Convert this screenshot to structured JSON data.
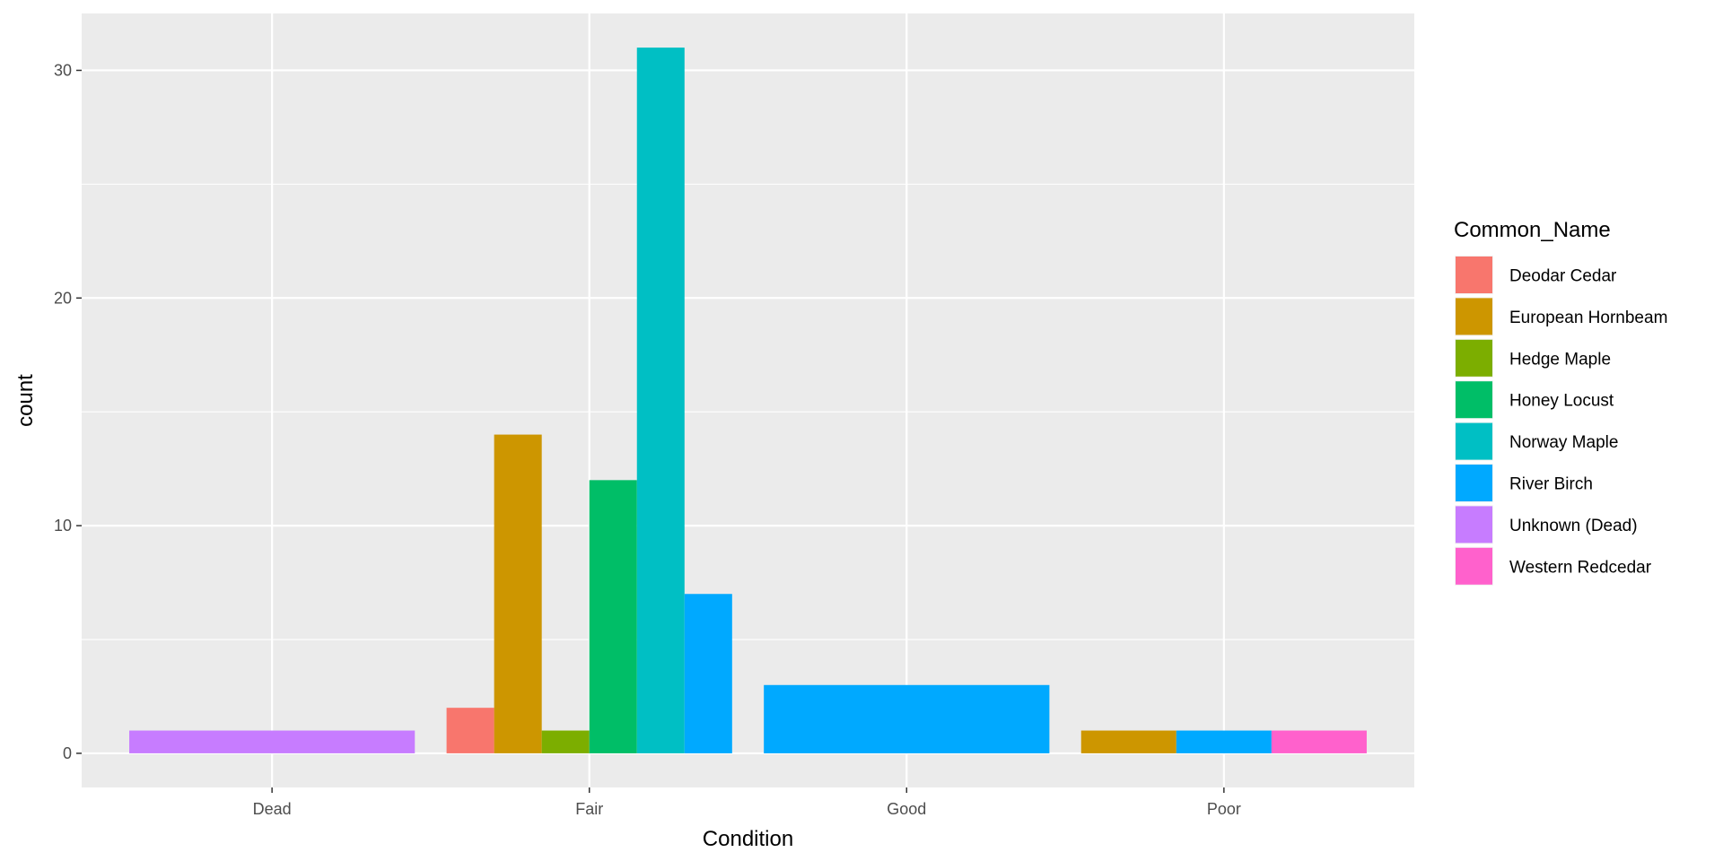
{
  "chart_data": {
    "type": "bar",
    "position": "dodge",
    "xlabel": "Condition",
    "ylabel": "count",
    "categories": [
      "Dead",
      "Fair",
      "Good",
      "Poor"
    ],
    "ylim": [
      -1.5,
      32.5
    ],
    "yticks": [
      0,
      10,
      20,
      30
    ],
    "grid": true,
    "legend": {
      "title": "Common_Name",
      "position": "right"
    },
    "series": [
      {
        "name": "Deodar Cedar",
        "color": "#F8766D",
        "values": [
          0,
          2,
          0,
          0
        ]
      },
      {
        "name": "European Hornbeam",
        "color": "#CD9600",
        "values": [
          0,
          14,
          0,
          1
        ]
      },
      {
        "name": "Hedge Maple",
        "color": "#7CAE00",
        "values": [
          0,
          1,
          0,
          0
        ]
      },
      {
        "name": "Honey Locust",
        "color": "#00BE67",
        "values": [
          0,
          12,
          0,
          0
        ]
      },
      {
        "name": "Norway Maple",
        "color": "#00BFC4",
        "values": [
          0,
          31,
          0,
          0
        ]
      },
      {
        "name": "River Birch",
        "color": "#00A9FF",
        "values": [
          0,
          7,
          3,
          1
        ]
      },
      {
        "name": "Unknown (Dead)",
        "color": "#C77CFF",
        "values": [
          1,
          0,
          0,
          0
        ]
      },
      {
        "name": "Western Redcedar",
        "color": "#FF61CC",
        "values": [
          0,
          0,
          0,
          1
        ]
      }
    ]
  }
}
